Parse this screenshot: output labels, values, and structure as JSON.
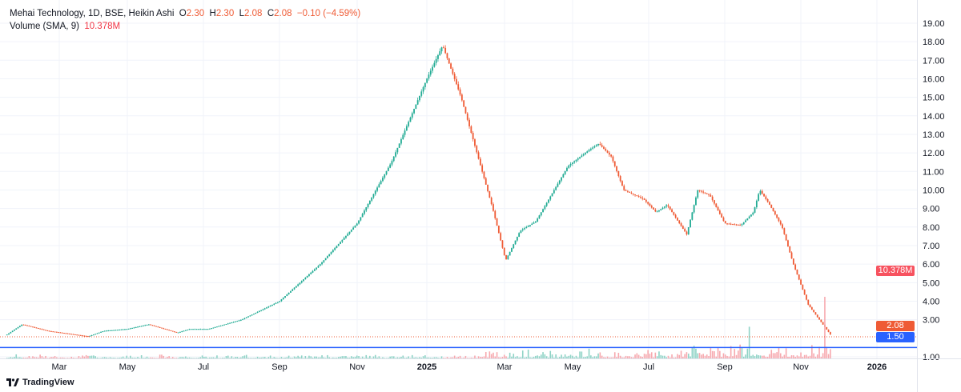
{
  "legend": {
    "title": "Mehai Technology, 1D, BSE, Heikin Ashi",
    "o_label": "O",
    "o": "2.30",
    "h_label": "H",
    "h": "2.30",
    "l_label": "L",
    "l": "2.08",
    "c_label": "C",
    "c": "2.08",
    "change": "−0.10 (−4.59%)",
    "volume_label": "Volume (SMA, 9)",
    "volume_value": "10.378M"
  },
  "brand": "TradingView",
  "colors": {
    "up": "#22ab94",
    "down": "#f7525f",
    "down_candle": "#ef5b35",
    "line": "#2962ff",
    "vol_up": "#8fd3c6",
    "vol_down": "#f7a9af"
  },
  "chart_data": {
    "type": "candlestick",
    "style": "Heikin Ashi",
    "ylim": [
      0.4,
      19.6
    ],
    "y_ticks": [
      "1.00",
      "3.00",
      "4.00",
      "5.00",
      "6.00",
      "7.00",
      "8.00",
      "9.00",
      "10.00",
      "11.00",
      "12.00",
      "13.00",
      "14.00",
      "15.00",
      "16.00",
      "17.00",
      "18.00",
      "19.00"
    ],
    "x_ticks": [
      {
        "label": "Mar",
        "date": "2024-03-01"
      },
      {
        "label": "May",
        "date": "2024-05-01"
      },
      {
        "label": "Jul",
        "date": "2024-07-01"
      },
      {
        "label": "Sep",
        "date": "2024-09-01"
      },
      {
        "label": "Nov",
        "date": "2024-11-01"
      },
      {
        "label": "2025",
        "date": "2025-01-01",
        "bold": true
      },
      {
        "label": "Mar",
        "date": "2025-03-01"
      },
      {
        "label": "May",
        "date": "2025-05-01"
      },
      {
        "label": "Jul",
        "date": "2025-07-01"
      },
      {
        "label": "Sep",
        "date": "2025-09-01"
      },
      {
        "label": "Nov",
        "date": "2025-11-01"
      },
      {
        "label": "2026",
        "date": "2026-01-01",
        "bold": true
      }
    ],
    "price_path": [
      [
        "2024-01-16",
        2.2
      ],
      [
        "2024-01-29",
        2.75
      ],
      [
        "2024-02-20",
        2.4
      ],
      [
        "2024-03-27",
        2.1
      ],
      [
        "2024-04-10",
        2.4
      ],
      [
        "2024-05-01",
        2.5
      ],
      [
        "2024-05-18",
        2.75
      ],
      [
        "2024-06-10",
        2.3
      ],
      [
        "2024-06-20",
        2.5
      ],
      [
        "2024-07-05",
        2.5
      ],
      [
        "2024-08-01",
        3.0
      ],
      [
        "2024-09-01",
        4.0
      ],
      [
        "2024-10-03",
        6.0
      ],
      [
        "2024-11-01",
        8.2
      ],
      [
        "2024-12-01",
        11.5
      ],
      [
        "2025-01-01",
        16.0
      ],
      [
        "2025-01-13",
        17.8
      ],
      [
        "2025-01-27",
        15.0
      ],
      [
        "2025-02-08",
        12.0
      ],
      [
        "2025-02-20",
        9.0
      ],
      [
        "2025-03-02",
        6.2
      ],
      [
        "2025-03-15",
        7.8
      ],
      [
        "2025-03-29",
        8.3
      ],
      [
        "2025-04-27",
        11.3
      ],
      [
        "2025-05-15",
        12.2
      ],
      [
        "2025-05-22",
        12.5
      ],
      [
        "2025-06-01",
        11.8
      ],
      [
        "2025-06-11",
        10.0
      ],
      [
        "2025-06-27",
        9.5
      ],
      [
        "2025-07-07",
        8.8
      ],
      [
        "2025-07-16",
        9.2
      ],
      [
        "2025-08-01",
        7.6
      ],
      [
        "2025-08-10",
        10.0
      ],
      [
        "2025-08-20",
        9.7
      ],
      [
        "2025-09-01",
        8.2
      ],
      [
        "2025-09-14",
        8.1
      ],
      [
        "2025-09-24",
        8.8
      ],
      [
        "2025-09-29",
        10.0
      ],
      [
        "2025-10-07",
        9.2
      ],
      [
        "2025-10-17",
        8.0
      ],
      [
        "2025-10-26",
        6.0
      ],
      [
        "2025-11-07",
        3.8
      ],
      [
        "2025-11-26",
        2.08
      ]
    ],
    "volume_spikes_m": [
      [
        "2025-09-20",
        18
      ],
      [
        "2025-11-20",
        35
      ],
      [
        "2025-11-26",
        50
      ]
    ],
    "last_price": "2.08",
    "horizontal_line": "1.50",
    "volume_tag": "10.378M"
  }
}
